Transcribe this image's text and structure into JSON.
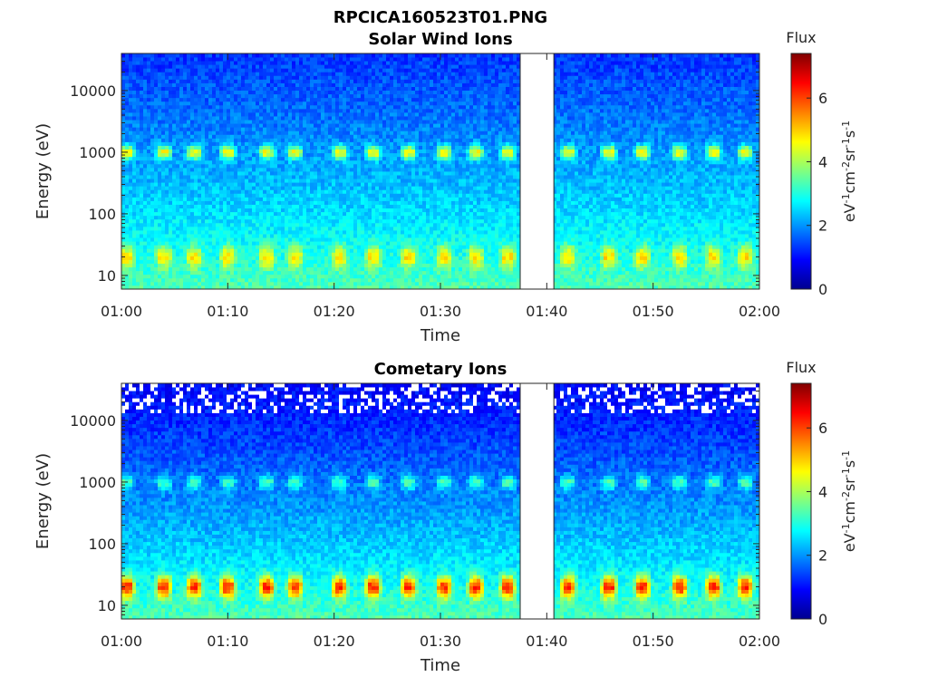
{
  "figure_title": "RPCICA160523T01.PNG",
  "colors": {
    "colormap": [
      "#00008f",
      "#0000ff",
      "#0080ff",
      "#00ffff",
      "#80ff80",
      "#ffff00",
      "#ff8000",
      "#ff0000",
      "#800000"
    ],
    "gap_fill": "#ffffff",
    "axis": "#262626"
  },
  "chart_data": [
    {
      "type": "heatmap",
      "title": "Solar Wind Ions",
      "xlabel": "Time",
      "ylabel": "Energy (eV)",
      "x_ticks": [
        "01:00",
        "01:10",
        "01:20",
        "01:30",
        "01:40",
        "01:50",
        "02:00"
      ],
      "x_range": [
        "01:00",
        "02:00"
      ],
      "y_ticks": [
        "10",
        "100",
        "1000",
        "10000"
      ],
      "y_scale": "log",
      "y_range": [
        6,
        40000
      ],
      "data_gap": [
        "01:37:30",
        "01:40:40"
      ],
      "colorbar": {
        "title": "Flux",
        "unit": "eV-1cm-2sr-1s-1",
        "ticks": [
          "0",
          "2",
          "4",
          "6"
        ],
        "range": [
          0,
          7.4
        ]
      },
      "features": {
        "background_flux_high_energy": 1.3,
        "background_flux_low_energy": 3.4,
        "beam_1000eV_peak_flux": 4.6,
        "beam_20eV_peak_flux": 4.8,
        "burst_times": [
          "01:00:30",
          "01:04:00",
          "01:06:50",
          "01:10:00",
          "01:13:40",
          "01:16:20",
          "01:20:30",
          "01:23:40",
          "01:27:00",
          "01:30:20",
          "01:33:20",
          "01:36:20",
          "01:42:00",
          "01:45:50",
          "01:49:00",
          "01:52:30",
          "01:55:40",
          "01:58:40"
        ]
      }
    },
    {
      "type": "heatmap",
      "title": "Cometary Ions",
      "xlabel": "Time",
      "ylabel": "Energy (eV)",
      "x_ticks": [
        "01:00",
        "01:10",
        "01:20",
        "01:30",
        "01:40",
        "01:50",
        "02:00"
      ],
      "x_range": [
        "01:00",
        "02:00"
      ],
      "y_ticks": [
        "10",
        "100",
        "1000",
        "10000"
      ],
      "y_scale": "log",
      "y_range": [
        6,
        40000
      ],
      "data_gap": [
        "01:37:30",
        "01:40:40"
      ],
      "colorbar": {
        "title": "Flux",
        "unit": "eV-1cm-2sr-1s-1",
        "ticks": [
          "0",
          "2",
          "4",
          "6"
        ],
        "range": [
          0,
          7.4
        ]
      },
      "features": {
        "background_flux_high_energy": 0.9,
        "background_flux_low_energy": 3.4,
        "beam_1000eV_peak_flux": 3.3,
        "beam_20eV_peak_flux": 6.2,
        "burst_times": [
          "01:00:30",
          "01:04:00",
          "01:06:50",
          "01:10:00",
          "01:13:40",
          "01:16:20",
          "01:20:30",
          "01:23:40",
          "01:27:00",
          "01:30:20",
          "01:33:20",
          "01:36:20",
          "01:42:00",
          "01:45:50",
          "01:49:00",
          "01:52:30",
          "01:55:40",
          "01:58:40"
        ]
      }
    }
  ]
}
